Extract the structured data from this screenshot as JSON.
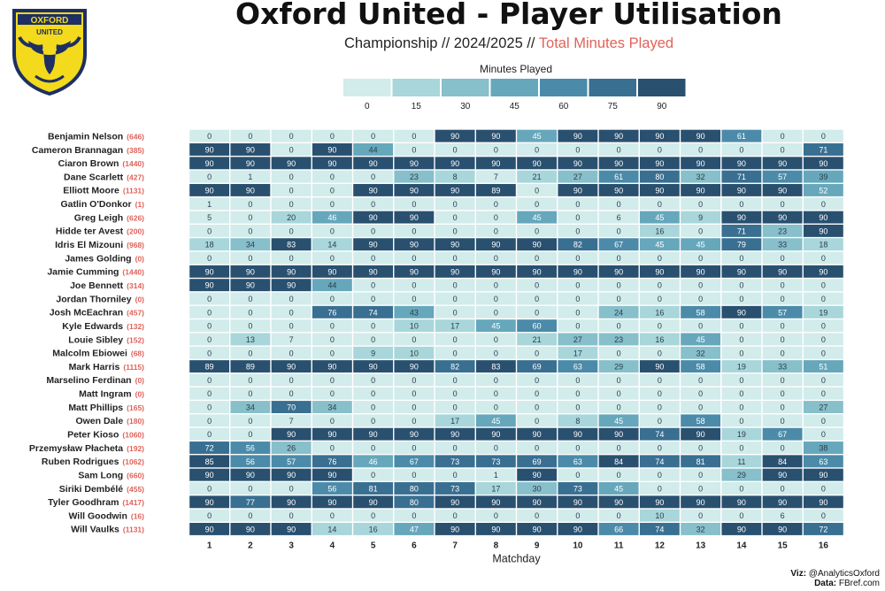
{
  "header": {
    "title": "Oxford United - Player Utilisation",
    "subtitle_prefix": "Championship // 2024/2025 // ",
    "subtitle_highlight": "Total Minutes Played"
  },
  "crest": {
    "top_text": "OXFORD",
    "bottom_text": "UNITED"
  },
  "colors": {
    "scale": [
      "#d2ebeb",
      "#a8d6da",
      "#87bfca",
      "#66a7bb",
      "#4b8ba9",
      "#396f91",
      "#29506f"
    ],
    "accent": "#e0625a",
    "crest_yellow": "#f3da1c",
    "crest_navy": "#1e2f63"
  },
  "credit": {
    "viz_label": "Viz:",
    "viz_value": " @AnalyticsOxford",
    "data_label": "Data:",
    "data_value": " FBref.com"
  },
  "chart_data": {
    "type": "heatmap",
    "title": "Oxford United - Player Utilisation",
    "subtitle": "Championship // 2024/2025 // Total Minutes Played",
    "xlabel": "Matchday",
    "ylabel": "",
    "x": [
      "1",
      "2",
      "3",
      "4",
      "5",
      "6",
      "7",
      "8",
      "9",
      "10",
      "11",
      "12",
      "13",
      "14",
      "15",
      "16"
    ],
    "legend": {
      "title": "Minutes Played",
      "position": "top",
      "levels": [
        "0",
        "15",
        "30",
        "45",
        "60",
        "75",
        "90"
      ]
    },
    "rows": [
      {
        "player": "Benjamin Nelson",
        "total": "(646)",
        "values": [
          0,
          0,
          0,
          0,
          0,
          0,
          90,
          90,
          45,
          90,
          90,
          90,
          90,
          61,
          0,
          0
        ]
      },
      {
        "player": "Cameron Brannagan",
        "total": "(385)",
        "values": [
          90,
          90,
          0,
          90,
          44,
          0,
          0,
          0,
          0,
          0,
          0,
          0,
          0,
          0,
          0,
          71
        ]
      },
      {
        "player": "Ciaron Brown",
        "total": "(1440)",
        "values": [
          90,
          90,
          90,
          90,
          90,
          90,
          90,
          90,
          90,
          90,
          90,
          90,
          90,
          90,
          90,
          90
        ]
      },
      {
        "player": "Dane Scarlett",
        "total": "(427)",
        "values": [
          0,
          1,
          0,
          0,
          0,
          23,
          8,
          7,
          21,
          27,
          61,
          80,
          32,
          71,
          57,
          39
        ]
      },
      {
        "player": "Elliott Moore",
        "total": "(1131)",
        "values": [
          90,
          90,
          0,
          0,
          90,
          90,
          90,
          89,
          0,
          90,
          90,
          90,
          90,
          90,
          90,
          52
        ]
      },
      {
        "player": "Gatlin O'Donkor",
        "total": "(1)",
        "values": [
          1,
          0,
          0,
          0,
          0,
          0,
          0,
          0,
          0,
          0,
          0,
          0,
          0,
          0,
          0,
          0
        ]
      },
      {
        "player": "Greg Leigh",
        "total": "(626)",
        "values": [
          5,
          0,
          20,
          46,
          90,
          90,
          0,
          0,
          45,
          0,
          6,
          45,
          9,
          90,
          90,
          90
        ]
      },
      {
        "player": "Hidde ter Avest",
        "total": "(200)",
        "values": [
          0,
          0,
          0,
          0,
          0,
          0,
          0,
          0,
          0,
          0,
          0,
          16,
          0,
          71,
          23,
          90
        ]
      },
      {
        "player": "Idris El Mizouni",
        "total": "(968)",
        "values": [
          18,
          34,
          83,
          14,
          90,
          90,
          90,
          90,
          90,
          82,
          67,
          45,
          45,
          79,
          33,
          18
        ]
      },
      {
        "player": "James Golding",
        "total": "(0)",
        "values": [
          0,
          0,
          0,
          0,
          0,
          0,
          0,
          0,
          0,
          0,
          0,
          0,
          0,
          0,
          0,
          0
        ]
      },
      {
        "player": "Jamie Cumming",
        "total": "(1440)",
        "values": [
          90,
          90,
          90,
          90,
          90,
          90,
          90,
          90,
          90,
          90,
          90,
          90,
          90,
          90,
          90,
          90
        ]
      },
      {
        "player": "Joe Bennett",
        "total": "(314)",
        "values": [
          90,
          90,
          90,
          44,
          0,
          0,
          0,
          0,
          0,
          0,
          0,
          0,
          0,
          0,
          0,
          0
        ]
      },
      {
        "player": "Jordan Thorniley",
        "total": "(0)",
        "values": [
          0,
          0,
          0,
          0,
          0,
          0,
          0,
          0,
          0,
          0,
          0,
          0,
          0,
          0,
          0,
          0
        ]
      },
      {
        "player": "Josh McEachran",
        "total": "(457)",
        "values": [
          0,
          0,
          0,
          76,
          74,
          43,
          0,
          0,
          0,
          0,
          24,
          16,
          58,
          90,
          57,
          19
        ]
      },
      {
        "player": "Kyle Edwards",
        "total": "(132)",
        "values": [
          0,
          0,
          0,
          0,
          0,
          10,
          17,
          45,
          60,
          0,
          0,
          0,
          0,
          0,
          0,
          0
        ]
      },
      {
        "player": "Louie Sibley",
        "total": "(152)",
        "values": [
          0,
          13,
          7,
          0,
          0,
          0,
          0,
          0,
          21,
          27,
          23,
          16,
          45,
          0,
          0,
          0
        ]
      },
      {
        "player": "Malcolm Ebiowei",
        "total": "(68)",
        "values": [
          0,
          0,
          0,
          0,
          9,
          10,
          0,
          0,
          0,
          17,
          0,
          0,
          32,
          0,
          0,
          0
        ]
      },
      {
        "player": "Mark Harris",
        "total": "(1115)",
        "values": [
          89,
          89,
          90,
          90,
          90,
          90,
          82,
          83,
          69,
          63,
          29,
          90,
          58,
          19,
          33,
          51
        ]
      },
      {
        "player": "Marselino Ferdinan",
        "total": "(0)",
        "values": [
          0,
          0,
          0,
          0,
          0,
          0,
          0,
          0,
          0,
          0,
          0,
          0,
          0,
          0,
          0,
          0
        ]
      },
      {
        "player": "Matt Ingram",
        "total": "(0)",
        "values": [
          0,
          0,
          0,
          0,
          0,
          0,
          0,
          0,
          0,
          0,
          0,
          0,
          0,
          0,
          0,
          0
        ]
      },
      {
        "player": "Matt Phillips",
        "total": "(165)",
        "values": [
          0,
          34,
          70,
          34,
          0,
          0,
          0,
          0,
          0,
          0,
          0,
          0,
          0,
          0,
          0,
          27
        ]
      },
      {
        "player": "Owen Dale",
        "total": "(180)",
        "values": [
          0,
          0,
          7,
          0,
          0,
          0,
          17,
          45,
          0,
          8,
          45,
          0,
          58,
          0,
          0,
          0
        ]
      },
      {
        "player": "Peter Kioso",
        "total": "(1060)",
        "values": [
          0,
          0,
          90,
          90,
          90,
          90,
          90,
          90,
          90,
          90,
          90,
          74,
          90,
          19,
          67,
          0
        ]
      },
      {
        "player": "Przemysław Płacheta",
        "total": "(192)",
        "values": [
          72,
          56,
          26,
          0,
          0,
          0,
          0,
          0,
          0,
          0,
          0,
          0,
          0,
          0,
          0,
          38
        ]
      },
      {
        "player": "Ruben Rodrigues",
        "total": "(1062)",
        "values": [
          85,
          56,
          57,
          76,
          46,
          67,
          73,
          73,
          69,
          63,
          84,
          74,
          81,
          11,
          84,
          63
        ]
      },
      {
        "player": "Sam Long",
        "total": "(660)",
        "values": [
          90,
          90,
          90,
          90,
          0,
          0,
          0,
          1,
          90,
          0,
          0,
          0,
          0,
          29,
          90,
          90
        ]
      },
      {
        "player": "Siriki Dembélé",
        "total": "(455)",
        "values": [
          0,
          0,
          0,
          56,
          81,
          80,
          73,
          17,
          30,
          73,
          45,
          0,
          0,
          0,
          0,
          0
        ]
      },
      {
        "player": "Tyler Goodhram",
        "total": "(1417)",
        "values": [
          90,
          77,
          90,
          90,
          90,
          80,
          90,
          90,
          90,
          90,
          90,
          90,
          90,
          90,
          90,
          90
        ]
      },
      {
        "player": "Will Goodwin",
        "total": "(16)",
        "values": [
          0,
          0,
          0,
          0,
          0,
          0,
          0,
          0,
          0,
          0,
          0,
          10,
          0,
          0,
          6,
          0
        ]
      },
      {
        "player": "Will Vaulks",
        "total": "(1131)",
        "values": [
          90,
          90,
          90,
          14,
          16,
          47,
          90,
          90,
          90,
          90,
          66,
          74,
          32,
          90,
          90,
          72
        ]
      }
    ]
  }
}
